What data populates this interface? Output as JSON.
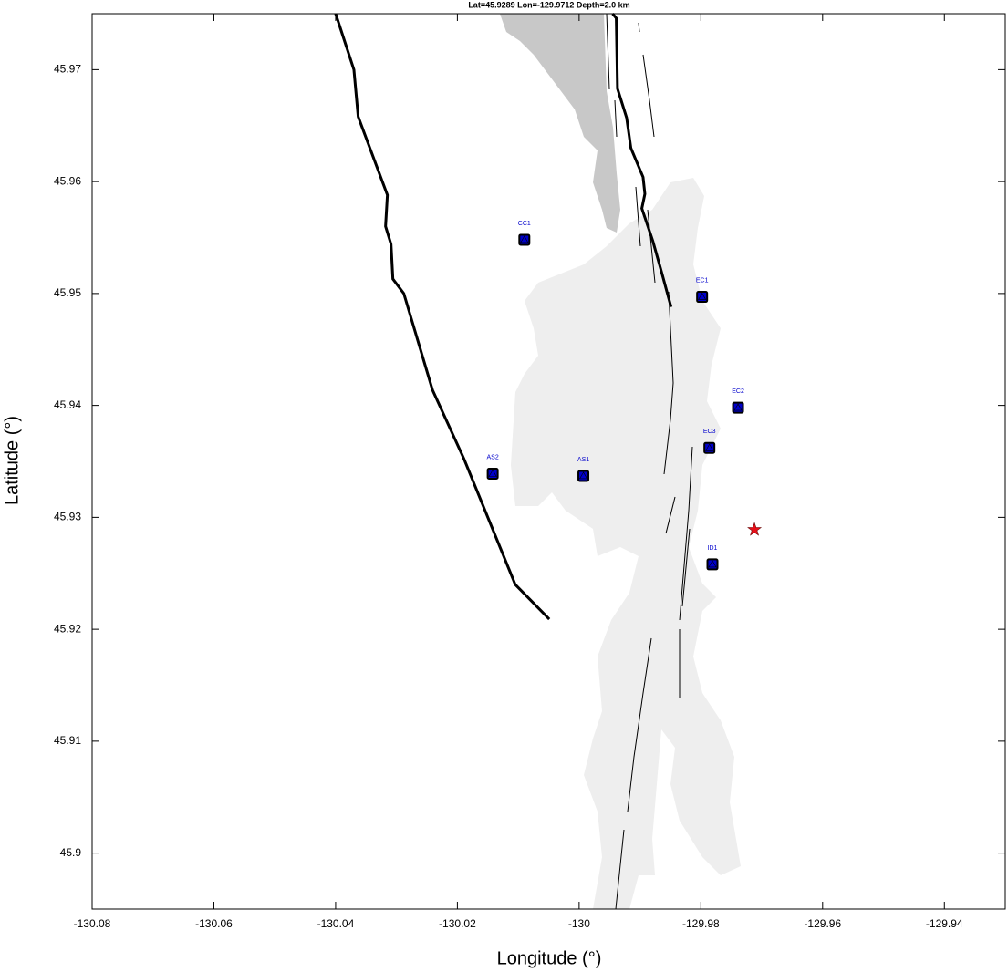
{
  "chart_data": {
    "type": "map",
    "title": "Lat=45.9289  Lon=-129.9712  Depth=2.0 km",
    "xlabel": "Longitude (°)",
    "ylabel": "Latitude (°)",
    "xlim": [
      -130.08,
      -129.93
    ],
    "ylim": [
      45.895,
      45.975
    ],
    "xticks": [
      -130.08,
      -130.06,
      -130.04,
      -130.02,
      -130,
      -129.98,
      -129.96,
      -129.94
    ],
    "yticks": [
      45.9,
      45.91,
      45.92,
      45.93,
      45.94,
      45.95,
      45.96,
      45.97
    ],
    "stations": {
      "labels": [
        "CC1",
        "EC1",
        "EC2",
        "EC3",
        "AS2",
        "AS1",
        "ID1"
      ],
      "x": [
        -130.009,
        -129.9798,
        -129.9739,
        -129.9786,
        -130.0142,
        -129.9993,
        -129.9781
      ],
      "y": [
        45.9548,
        45.9497,
        45.9398,
        45.9362,
        45.9339,
        45.9337,
        45.9258
      ],
      "color": "#0000cc"
    },
    "event": {
      "x": -129.9712,
      "y": 45.9289,
      "color": "#e8101a"
    },
    "lines": [
      {
        "x": [
          -130.04,
          -130.037,
          -130.0363,
          -130.0315,
          -130.0318,
          -130.0309,
          -130.0306,
          -130.0288,
          -130.0241,
          -130.0189,
          -130.0105,
          -130.0049
        ],
        "y": [
          45.975,
          45.97,
          45.9658,
          45.9588,
          45.956,
          45.9544,
          45.9513,
          45.95,
          45.9414,
          45.9352,
          45.924,
          45.9209
        ]
      },
      {
        "x": [
          -129.9945,
          -129.9939,
          -129.9937,
          -129.9922,
          -129.9915,
          -129.9895,
          -129.9892,
          -129.9897,
          -129.9879,
          -129.9864,
          -129.9849
        ],
        "y": [
          45.975,
          45.9746,
          45.9683,
          45.9657,
          45.963,
          45.9604,
          45.9589,
          45.9576,
          45.9547,
          45.9518,
          45.9488
        ]
      }
    ]
  }
}
